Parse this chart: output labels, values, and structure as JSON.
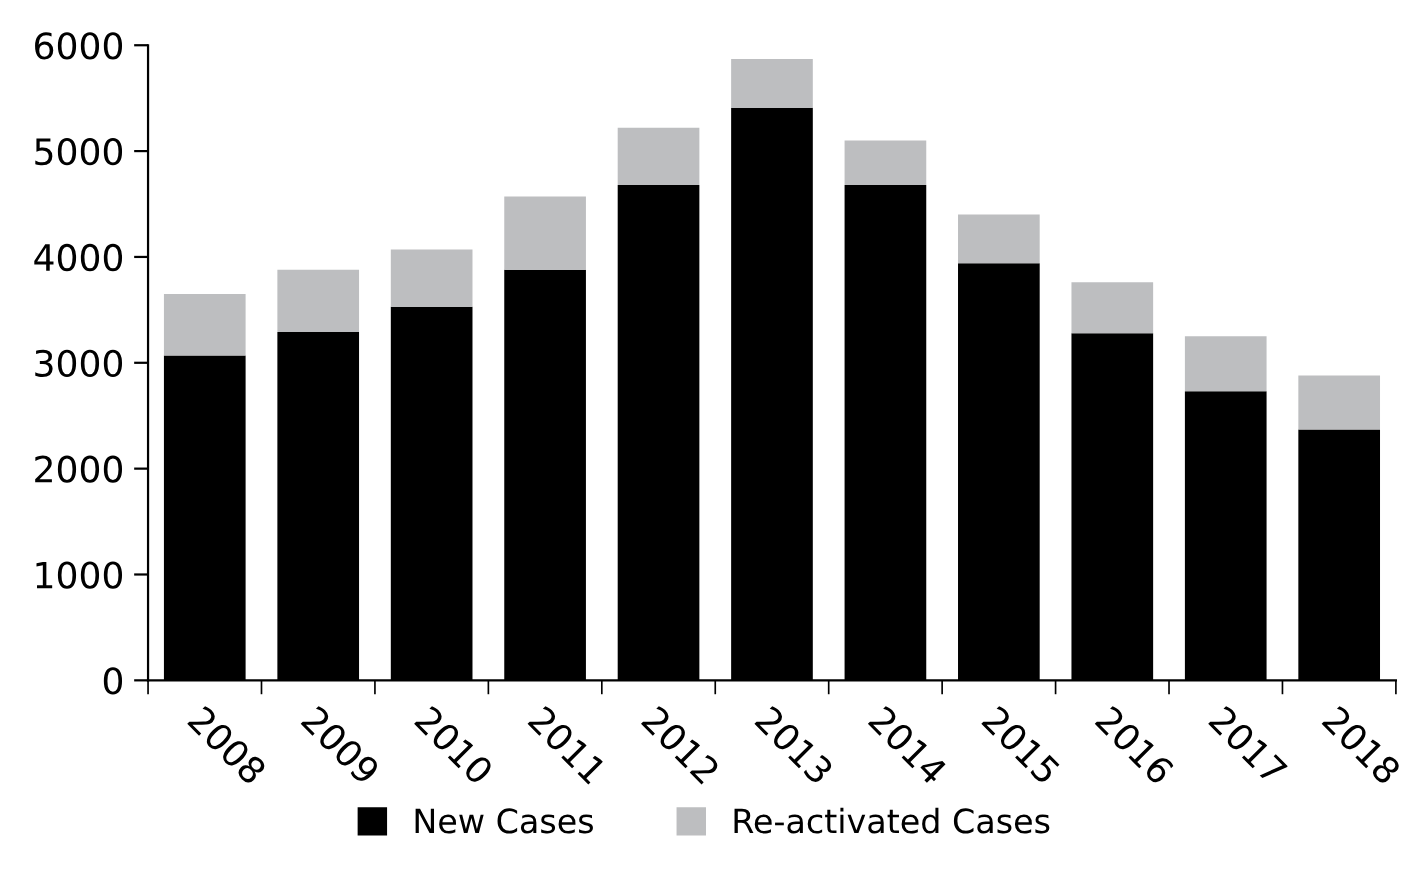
{
  "chart_data": {
    "type": "bar",
    "stacked": true,
    "categories": [
      "2008",
      "2009",
      "2010",
      "2011",
      "2012",
      "2013",
      "2014",
      "2015",
      "2016",
      "2017",
      "2018"
    ],
    "series": [
      {
        "name": "New Cases",
        "color": "#000000",
        "values": [
          3070,
          3290,
          3530,
          3880,
          4680,
          5410,
          4680,
          3940,
          3280,
          2730,
          2370
        ]
      },
      {
        "name": "Re-activated Cases",
        "color": "#bdbec0",
        "values": [
          580,
          590,
          540,
          690,
          540,
          460,
          420,
          460,
          480,
          520,
          510
        ]
      }
    ],
    "ylim": [
      0,
      6000
    ],
    "yticks": [
      0,
      1000,
      2000,
      3000,
      4000,
      5000,
      6000
    ],
    "grid": false,
    "legend": "bottom"
  }
}
